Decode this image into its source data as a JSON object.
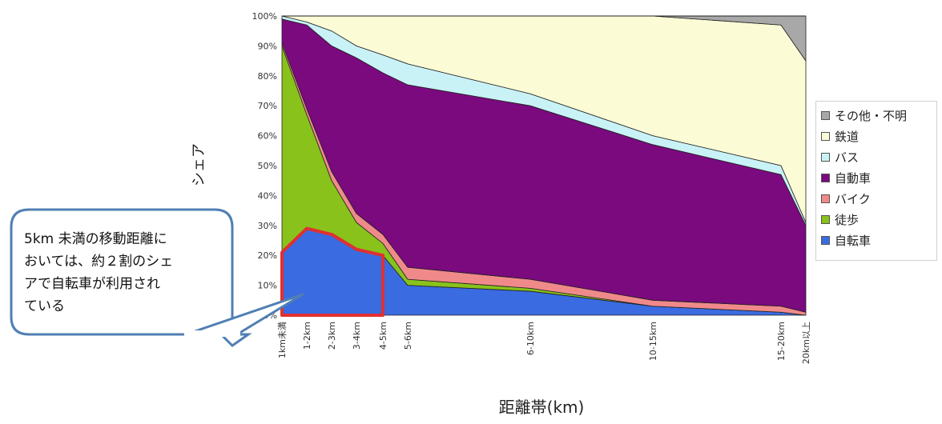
{
  "chart_data": {
    "type": "area",
    "stacked": true,
    "percent": true,
    "categories": [
      "1km未満",
      "1-2km",
      "2-3km",
      "3-4km",
      "4-5km",
      "5-6km",
      "6-10km",
      "10-15km",
      "15-20km",
      "20km以上"
    ],
    "xlabel": "距離帯(km)",
    "ylabel": "シェア",
    "ylim": [
      0,
      100
    ],
    "yticks": [
      "0%",
      "10%",
      "20%",
      "30%",
      "40%",
      "50%",
      "60%",
      "70%",
      "80%",
      "90%",
      "100%"
    ],
    "legend_position": "right",
    "series": [
      {
        "name": "自転車",
        "color": "#3a6be0",
        "values": [
          21,
          29,
          27,
          22,
          20,
          10,
          8,
          3,
          1,
          0
        ]
      },
      {
        "name": "徒歩",
        "color": "#88c21b",
        "values": [
          69,
          38,
          18,
          9,
          4,
          2,
          1,
          0,
          0,
          0
        ]
      },
      {
        "name": "バイク",
        "color": "#f08a8a",
        "values": [
          1,
          2,
          3,
          3,
          3,
          4,
          3,
          2,
          2,
          1
        ]
      },
      {
        "name": "自動車",
        "color": "#7a0a7e",
        "values": [
          8,
          28,
          42,
          52,
          54,
          61,
          58,
          52,
          44,
          29
        ]
      },
      {
        "name": "バス",
        "color": "#c8f2f6",
        "values": [
          1,
          1,
          5,
          4,
          6,
          7,
          4,
          3,
          3,
          1
        ]
      },
      {
        "name": "鉄道",
        "color": "#fbfbd6",
        "values": [
          0,
          2,
          5,
          10,
          13,
          16,
          26,
          40,
          47,
          54
        ]
      },
      {
        "name": "その他・不明",
        "color": "#a8a8a8",
        "values": [
          0,
          0,
          0,
          0,
          0,
          0,
          0,
          0,
          3,
          15
        ]
      }
    ],
    "annotation": {
      "text": "5km 未満の移動距離において は、約２割のシェアで自転車が利用されている",
      "lines": [
        "5km  未満の移動距離に",
        "おいては、約２割のシェ",
        "アで自転車が利用され",
        "ている"
      ],
      "highlight_color": "#e03030"
    }
  }
}
